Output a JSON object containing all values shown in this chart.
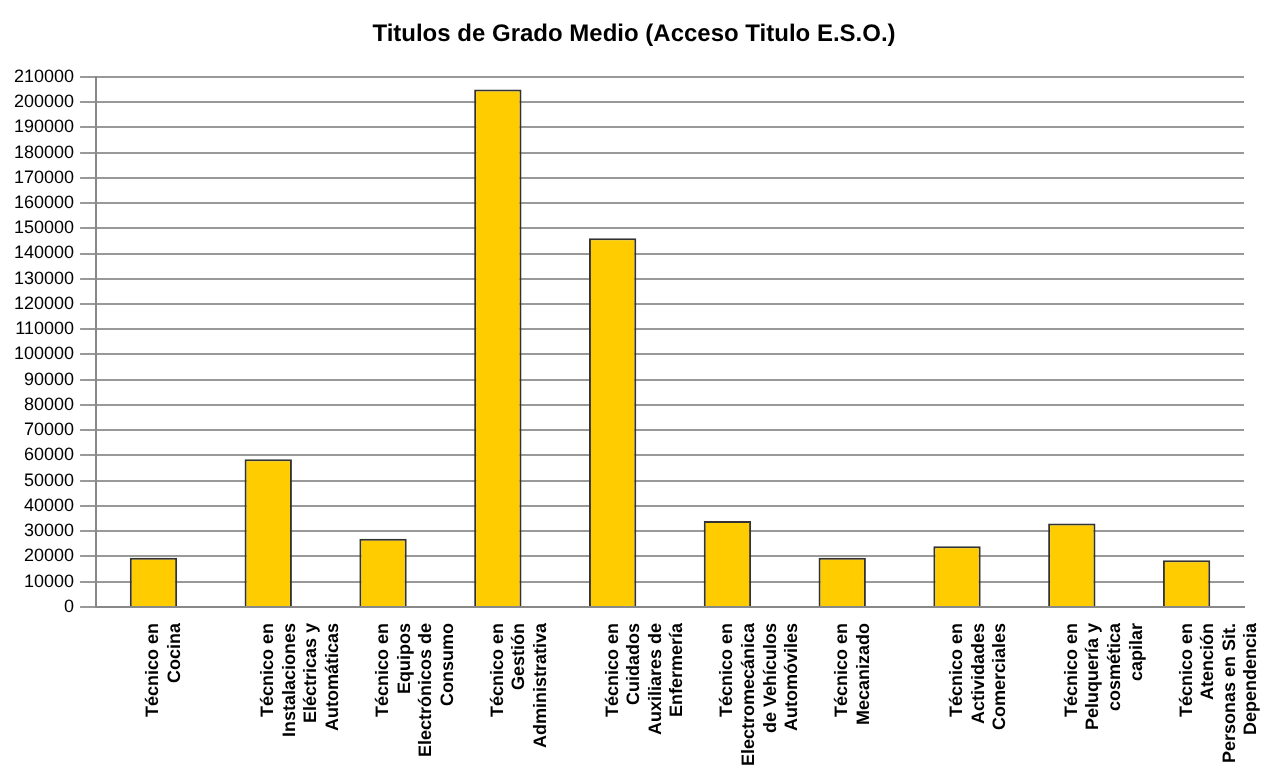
{
  "chart_data": {
    "type": "bar",
    "title": "Titulos de Grado Medio (Acceso Titulo E.S.O.)",
    "categories": [
      "Técnico en Cocina",
      "Técnico en Instalaciones Eléctricas y Automáticas",
      "Técnico en Equipos Electrónicos de Consumo",
      "Técnico en Gestión Administrativa",
      "Técnico en Cuidados Auxiliares de Enfermería",
      "Técnico en Electromecánica de Vehículos Automóviles",
      "Técnico en Mecanizado",
      "Técnico en Actividades Comerciales",
      "Técnico en Peluquería y cosmética capilar",
      "Técnico en Atención Personas en Sit. Dependencia"
    ],
    "values": [
      19500,
      58500,
      27000,
      205000,
      146000,
      34000,
      19500,
      24000,
      33000,
      18500
    ],
    "color": "#ffcc00",
    "ylim": [
      0,
      210000
    ],
    "yticks": [
      0,
      10000,
      20000,
      30000,
      40000,
      50000,
      60000,
      70000,
      80000,
      90000,
      100000,
      110000,
      120000,
      130000,
      140000,
      150000,
      160000,
      170000,
      180000,
      190000,
      200000,
      210000
    ],
    "grid": "y",
    "legend": false
  }
}
